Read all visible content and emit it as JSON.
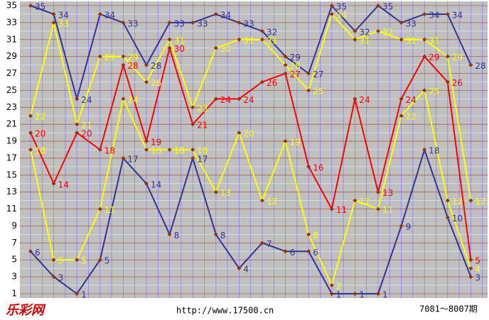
{
  "chart_data": {
    "type": "line",
    "ylim": [
      1,
      35
    ],
    "yticks": [
      1,
      3,
      5,
      7,
      9,
      11,
      13,
      15,
      17,
      19,
      21,
      23,
      25,
      27,
      29,
      31,
      33,
      35
    ],
    "grid": true,
    "series": [
      {
        "color": "#333399",
        "values": [
          6,
          3,
          1,
          5,
          17,
          14,
          8,
          17,
          8,
          4,
          7,
          6,
          6,
          1,
          1,
          1,
          9,
          18,
          10,
          3
        ]
      },
      {
        "color": "#ffff00",
        "values": [
          18,
          5,
          5,
          11,
          24,
          18,
          18,
          18,
          13,
          20,
          12,
          19,
          8,
          2,
          12,
          11,
          22,
          25,
          12,
          4
        ]
      },
      {
        "color": "#ff0000",
        "values": [
          20,
          14,
          20,
          18,
          28,
          19,
          30,
          21,
          24,
          24,
          26,
          27,
          16,
          11,
          24,
          13,
          24,
          29,
          26,
          5
        ]
      },
      {
        "color": "#ffff00",
        "values": [
          22,
          33,
          21,
          29,
          29,
          26,
          31,
          23,
          30,
          31,
          31,
          28,
          25,
          34,
          31,
          32,
          31,
          31,
          29,
          12
        ]
      },
      {
        "color": "#333399",
        "values": [
          35,
          34,
          24,
          34,
          33,
          28,
          33,
          33,
          34,
          33,
          32,
          29,
          27,
          35,
          32,
          35,
          33,
          34,
          34,
          28
        ]
      }
    ],
    "footer": {
      "logo": "乐彩网",
      "url": "http://www.17500.cn",
      "range": "7081～8007期"
    }
  }
}
